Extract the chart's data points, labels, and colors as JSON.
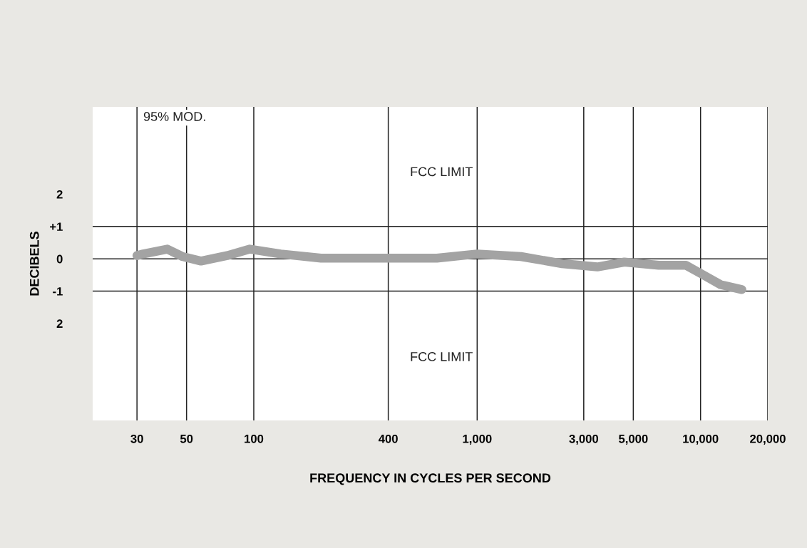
{
  "chart_data": {
    "type": "line",
    "xlabel": "FREQUENCY IN CYCLES PER SECOND",
    "ylabel": "DECIBELS",
    "log": "x",
    "x": [
      30,
      32,
      41,
      48,
      58,
      76,
      96,
      132,
      200,
      400,
      660,
      1000,
      1570,
      2400,
      3450,
      4560,
      6500,
      8600,
      10300,
      12300,
      15300
    ],
    "series": [
      {
        "color": "#a3a3a3",
        "values": [
          0.1,
          0.15,
          0.3,
          0.07,
          -0.07,
          0.1,
          0.3,
          0.15,
          0.02,
          0.02,
          0.02,
          0.15,
          0.07,
          -0.15,
          -0.25,
          -0.1,
          -0.2,
          -0.2,
          -0.5,
          -0.8,
          -0.95
        ]
      }
    ],
    "xlim": [
      19,
      20000
    ],
    "xticks": [
      30,
      50,
      100,
      400,
      {
        "value": 1000,
        "label": "1,000"
      },
      {
        "value": 3000,
        "label": "3,000"
      },
      {
        "value": 5000,
        "label": "5,000"
      },
      {
        "value": 10000,
        "label": "10,000"
      },
      {
        "value": 20000,
        "label": "20,000"
      }
    ],
    "ylim": [
      -5,
      4.7
    ],
    "yticks": [
      {
        "value": 2,
        "label": "2"
      },
      {
        "value": 1,
        "label": "+1"
      },
      0,
      -1,
      {
        "value": -2,
        "label": "2"
      }
    ],
    "ref_lines": [
      {
        "axis": "y",
        "value": 1,
        "color": "#222222"
      },
      {
        "axis": "y",
        "value": 0,
        "color": "#222222"
      },
      {
        "axis": "y",
        "value": -1,
        "color": "#222222"
      }
    ],
    "grid": "x",
    "line_style": "solid",
    "legend": false,
    "annotations": [
      "95% MOD.",
      "FCC LIMIT",
      "FCC LIMIT"
    ]
  }
}
